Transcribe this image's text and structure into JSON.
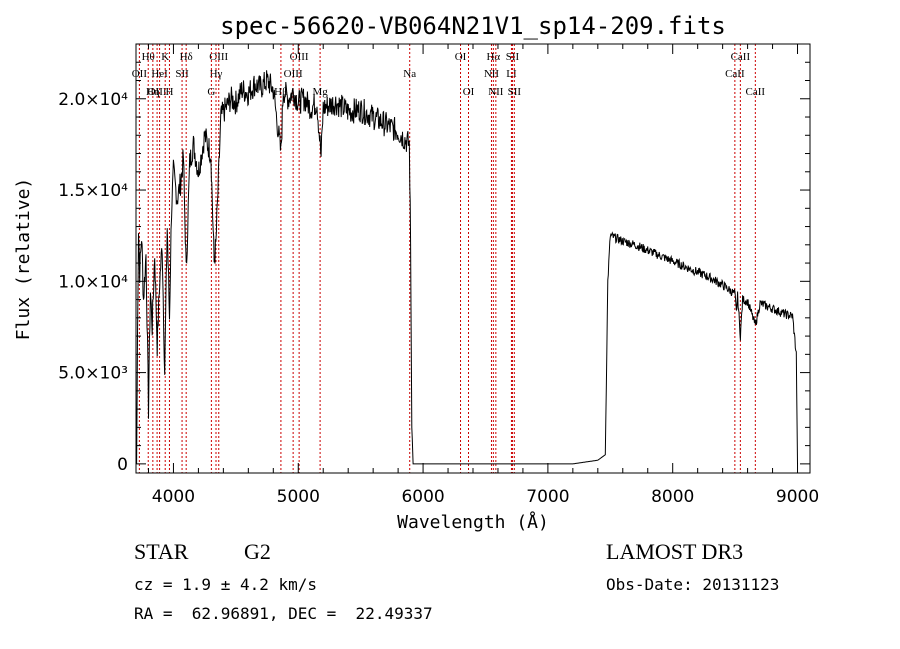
{
  "chart_data": {
    "type": "line",
    "title": "spec-56620-VB064N21V1_sp14-209.fits",
    "xlabel": "Wavelength (Å)",
    "ylabel": "Flux (relative)",
    "xlim": [
      3700,
      9100
    ],
    "ylim": [
      -500,
      23000
    ],
    "x_ticks": [
      {
        "value": 4000,
        "label": "4000"
      },
      {
        "value": 5000,
        "label": "5000"
      },
      {
        "value": 6000,
        "label": "6000"
      },
      {
        "value": 7000,
        "label": "7000"
      },
      {
        "value": 8000,
        "label": "8000"
      },
      {
        "value": 9000,
        "label": "9000"
      }
    ],
    "y_ticks": [
      {
        "value": 0,
        "label": "0"
      },
      {
        "value": 5000,
        "label": "5.0×10³"
      },
      {
        "value": 10000,
        "label": "1.0×10⁴"
      },
      {
        "value": 15000,
        "label": "1.5×10⁴"
      },
      {
        "value": 20000,
        "label": "2.0×10⁴"
      }
    ],
    "grid": false,
    "series": [
      {
        "name": "spectrum",
        "anchors": [
          [
            3705,
            0
          ],
          [
            3712,
            7000
          ],
          [
            3720,
            13000
          ],
          [
            3730,
            10500
          ],
          [
            3745,
            12500
          ],
          [
            3760,
            9000
          ],
          [
            3780,
            11500
          ],
          [
            3800,
            3000
          ],
          [
            3815,
            9500
          ],
          [
            3830,
            7500
          ],
          [
            3850,
            11500
          ],
          [
            3870,
            6500
          ],
          [
            3890,
            10000
          ],
          [
            3910,
            12000
          ],
          [
            3930,
            5000
          ],
          [
            3950,
            13000
          ],
          [
            3968,
            8000
          ],
          [
            3985,
            14000
          ],
          [
            4000,
            16000
          ],
          [
            4030,
            14500
          ],
          [
            4060,
            15500
          ],
          [
            4080,
            16800
          ],
          [
            4102,
            10500
          ],
          [
            4130,
            16500
          ],
          [
            4160,
            17500
          ],
          [
            4200,
            16000
          ],
          [
            4250,
            18000
          ],
          [
            4300,
            17000
          ],
          [
            4326,
            11000
          ],
          [
            4340,
            12000
          ],
          [
            4380,
            19000
          ],
          [
            4420,
            19500
          ],
          [
            4460,
            20000
          ],
          [
            4500,
            19800
          ],
          [
            4550,
            20500
          ],
          [
            4600,
            20300
          ],
          [
            4650,
            20800
          ],
          [
            4700,
            20600
          ],
          [
            4750,
            21000
          ],
          [
            4800,
            20500
          ],
          [
            4861,
            17000
          ],
          [
            4880,
            20500
          ],
          [
            4920,
            20000
          ],
          [
            4960,
            20400
          ],
          [
            5000,
            19800
          ],
          [
            5050,
            20000
          ],
          [
            5100,
            19500
          ],
          [
            5150,
            19800
          ],
          [
            5183,
            16800
          ],
          [
            5200,
            19500
          ],
          [
            5300,
            19800
          ],
          [
            5400,
            19300
          ],
          [
            5500,
            19400
          ],
          [
            5600,
            19000
          ],
          [
            5700,
            18600
          ],
          [
            5800,
            18200
          ],
          [
            5890,
            17500
          ],
          [
            5900,
            12000
          ],
          [
            5910,
            2000
          ],
          [
            5920,
            0
          ],
          [
            6000,
            0
          ],
          [
            6300,
            0
          ],
          [
            6600,
            0
          ],
          [
            6900,
            0
          ],
          [
            7200,
            0
          ],
          [
            7400,
            200
          ],
          [
            7460,
            500
          ],
          [
            7480,
            10000
          ],
          [
            7500,
            12500
          ],
          [
            7600,
            12200
          ],
          [
            7700,
            12000
          ],
          [
            7800,
            11700
          ],
          [
            7900,
            11400
          ],
          [
            8000,
            11100
          ],
          [
            8100,
            10800
          ],
          [
            8200,
            10500
          ],
          [
            8300,
            10200
          ],
          [
            8400,
            9800
          ],
          [
            8498,
            9300
          ],
          [
            8510,
            8300
          ],
          [
            8520,
            9200
          ],
          [
            8542,
            7000
          ],
          [
            8560,
            9000
          ],
          [
            8600,
            8900
          ],
          [
            8662,
            7600
          ],
          [
            8700,
            8800
          ],
          [
            8800,
            8500
          ],
          [
            8900,
            8200
          ],
          [
            8960,
            8100
          ],
          [
            8990,
            6000
          ],
          [
            9000,
            0
          ]
        ]
      }
    ],
    "line_markers": [
      {
        "label": "Hθ",
        "x": 3798,
        "row": 0
      },
      {
        "label": "OII",
        "x": 3727,
        "row": 1
      },
      {
        "label": "OIII",
        "x": 3869,
        "row": 2
      },
      {
        "label": "Hη",
        "x": 3835,
        "row": 2
      },
      {
        "label": "HeI",
        "x": 3889,
        "row": 1
      },
      {
        "label": "K",
        "x": 3934,
        "row": 0
      },
      {
        "label": "SII",
        "x": 4069,
        "row": 1
      },
      {
        "label": "H",
        "x": 3968,
        "row": 2
      },
      {
        "label": "Hδ",
        "x": 4102,
        "row": 0
      },
      {
        "label": "OIII",
        "x": 4363,
        "row": 0
      },
      {
        "label": "Hγ",
        "x": 4341,
        "row": 1
      },
      {
        "label": "G",
        "x": 4304,
        "row": 2
      },
      {
        "label": "OIII",
        "x": 5007,
        "row": 0
      },
      {
        "label": "OIII",
        "x": 4959,
        "row": 1
      },
      {
        "label": "Hβ",
        "x": 4861,
        "row": 2
      },
      {
        "label": "Mg",
        "x": 5175,
        "row": 2
      },
      {
        "label": "Na",
        "x": 5893,
        "row": 1
      },
      {
        "label": "OI",
        "x": 6300,
        "row": 0
      },
      {
        "label": "OI",
        "x": 6364,
        "row": 2
      },
      {
        "label": "Hα",
        "x": 6563,
        "row": 0
      },
      {
        "label": "SII",
        "x": 6716,
        "row": 0
      },
      {
        "label": "NII",
        "x": 6548,
        "row": 1
      },
      {
        "label": "LI",
        "x": 6708,
        "row": 1
      },
      {
        "label": "NII",
        "x": 6583,
        "row": 2
      },
      {
        "label": "SII",
        "x": 6731,
        "row": 2
      },
      {
        "label": "CaII",
        "x": 8498,
        "row": 1
      },
      {
        "label": "CaII",
        "x": 8542,
        "row": 0
      },
      {
        "label": "CaII",
        "x": 8662,
        "row": 2
      }
    ]
  },
  "info": {
    "object_class": "STAR",
    "subclass": "G2",
    "redshift": "cz = 1.9 ± 4.2 km/s",
    "coords": "RA =  62.96891, DEC =  22.49337",
    "survey": "LAMOST DR3",
    "obs_date": "Obs-Date: 20131123"
  }
}
